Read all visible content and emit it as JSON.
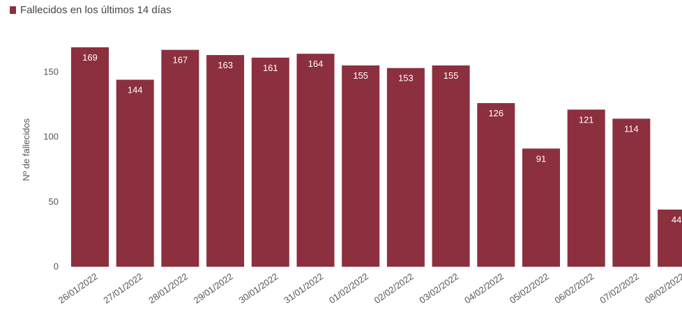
{
  "chart_data": {
    "type": "bar",
    "legend": "Fallecidos en los últimos 14 días",
    "series_color": "#8c2f3e",
    "ylabel": "Nº de fallecidos",
    "xlabel": "",
    "ylim": [
      0,
      170
    ],
    "yticks": [
      0,
      50,
      100,
      150
    ],
    "categories": [
      "26/01/2022",
      "27/01/2022",
      "28/01/2022",
      "29/01/2022",
      "30/01/2022",
      "31/01/2022",
      "01/02/2022",
      "02/02/2022",
      "03/02/2022",
      "04/02/2022",
      "05/02/2022",
      "06/02/2022",
      "07/02/2022",
      "08/02/2022"
    ],
    "values": [
      169,
      144,
      167,
      163,
      161,
      164,
      155,
      153,
      155,
      126,
      91,
      121,
      114,
      44
    ],
    "grid": false,
    "legend_position": "top-left"
  }
}
